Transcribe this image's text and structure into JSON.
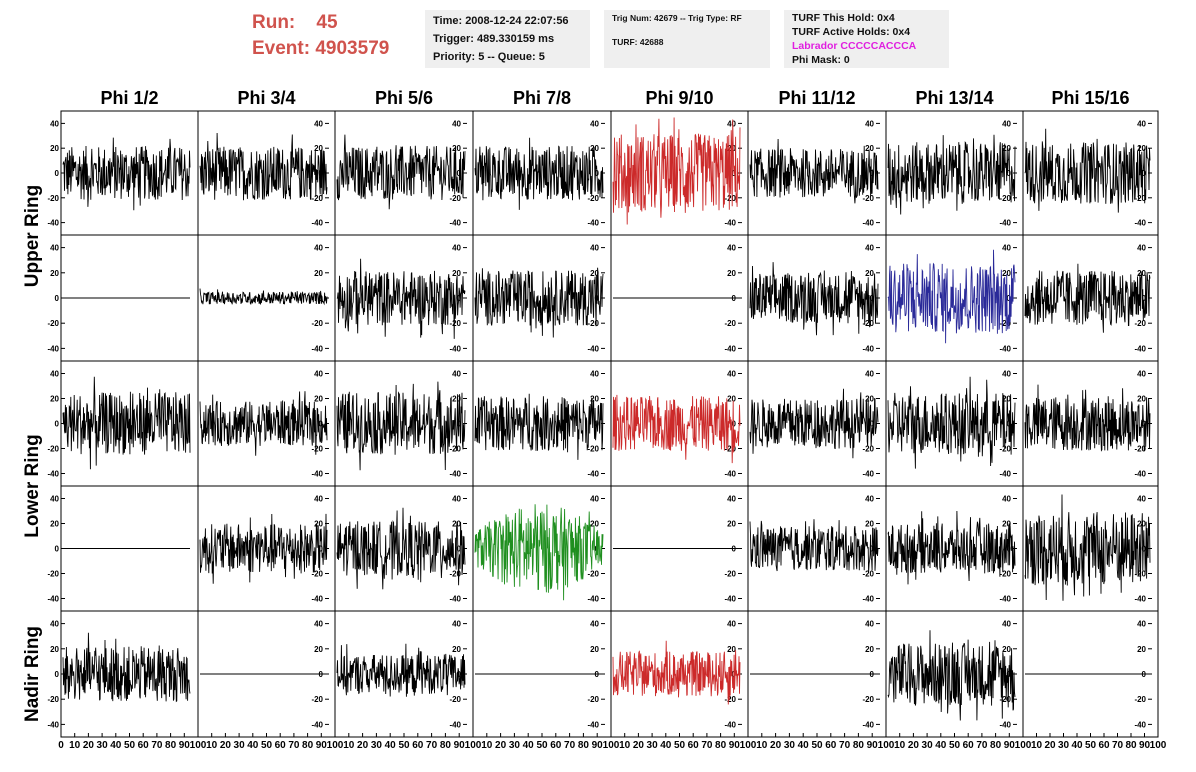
{
  "header": {
    "run_label": "Run:",
    "run_value": "45",
    "event_label": "Event:",
    "event_value": "4903579",
    "time": "Time: 2008-12-24 22:07:56",
    "trigger": "Trigger: 489.330159 ms",
    "priority": "Priority: 5 -- Queue: 5",
    "trig_num": "Trig Num: 42679 -- Trig Type: RF",
    "turf": "TURF: 42688",
    "turf_this_hold": "TURF This Hold: 0x4",
    "turf_active_holds": "TURF Active Holds: 0x4",
    "labrador": "Labrador CCCCCACCCA",
    "phi_mask": "Phi Mask: 0",
    "labrador_color": "#e020e0",
    "run_color": "#d0534d"
  },
  "chart_data": {
    "type": "line",
    "columns": [
      "Phi 1/2",
      "Phi 3/4",
      "Phi 5/6",
      "Phi 7/8",
      "Phi 9/10",
      "Phi 11/12",
      "Phi 13/14",
      "Phi 15/16"
    ],
    "row_groups": [
      {
        "label": "Upper Ring",
        "rows": [
          0,
          1
        ]
      },
      {
        "label": "Lower Ring",
        "rows": [
          2,
          3
        ]
      },
      {
        "label": "Nadir Ring",
        "rows": [
          4
        ]
      }
    ],
    "ylim": [
      -50,
      50
    ],
    "yticks": [
      "40",
      "20",
      "0",
      "-20",
      "-40"
    ],
    "xlim": [
      0,
      100
    ],
    "xticks": [
      "0",
      "10",
      "20",
      "30",
      "40",
      "50",
      "60",
      "70",
      "80",
      "90",
      "100"
    ],
    "colors": {
      "default": "#000000",
      "red": "#cc2a2a",
      "blue": "#2a2a99",
      "green": "#1f8f1f"
    },
    "rows": [
      {
        "panels": [
          {
            "color": "default",
            "amplitude": 22,
            "flat": false
          },
          {
            "color": "default",
            "amplitude": 22,
            "flat": false
          },
          {
            "color": "default",
            "amplitude": 22,
            "flat": false
          },
          {
            "color": "default",
            "amplitude": 22,
            "flat": false
          },
          {
            "color": "red",
            "amplitude": 32,
            "flat": false
          },
          {
            "color": "default",
            "amplitude": 20,
            "flat": false
          },
          {
            "color": "default",
            "amplitude": 25,
            "flat": false
          },
          {
            "color": "default",
            "amplitude": 25,
            "flat": false
          }
        ]
      },
      {
        "panels": [
          {
            "color": "default",
            "amplitude": 0,
            "flat": true
          },
          {
            "color": "default",
            "amplitude": 5,
            "flat": false
          },
          {
            "color": "default",
            "amplitude": 22,
            "flat": false
          },
          {
            "color": "default",
            "amplitude": 22,
            "flat": false
          },
          {
            "color": "default",
            "amplitude": 0,
            "flat": true
          },
          {
            "color": "default",
            "amplitude": 20,
            "flat": false
          },
          {
            "color": "blue",
            "amplitude": 28,
            "flat": false
          },
          {
            "color": "default",
            "amplitude": 22,
            "flat": false
          }
        ]
      },
      {
        "panels": [
          {
            "color": "default",
            "amplitude": 25,
            "flat": false
          },
          {
            "color": "default",
            "amplitude": 18,
            "flat": false
          },
          {
            "color": "default",
            "amplitude": 25,
            "flat": false
          },
          {
            "color": "default",
            "amplitude": 22,
            "flat": false
          },
          {
            "color": "red",
            "amplitude": 22,
            "flat": false
          },
          {
            "color": "default",
            "amplitude": 20,
            "flat": false
          },
          {
            "color": "default",
            "amplitude": 25,
            "flat": false
          },
          {
            "color": "default",
            "amplitude": 22,
            "flat": false
          }
        ]
      },
      {
        "panels": [
          {
            "color": "default",
            "amplitude": 0,
            "flat": true
          },
          {
            "color": "default",
            "amplitude": 20,
            "flat": false
          },
          {
            "color": "default",
            "amplitude": 22,
            "flat": false
          },
          {
            "color": "green",
            "amplitude": 28,
            "flat": false
          },
          {
            "color": "default",
            "amplitude": 0,
            "flat": true
          },
          {
            "color": "default",
            "amplitude": 18,
            "flat": false
          },
          {
            "color": "default",
            "amplitude": 20,
            "flat": false
          },
          {
            "color": "default",
            "amplitude": 30,
            "flat": false
          }
        ]
      },
      {
        "panels": [
          {
            "color": "default",
            "amplitude": 22,
            "flat": false
          },
          {
            "color": "default",
            "amplitude": 0,
            "flat": true
          },
          {
            "color": "default",
            "amplitude": 16,
            "flat": false
          },
          {
            "color": "default",
            "amplitude": 0,
            "flat": true
          },
          {
            "color": "red",
            "amplitude": 18,
            "flat": false
          },
          {
            "color": "default",
            "amplitude": 0,
            "flat": true
          },
          {
            "color": "default",
            "amplitude": 25,
            "flat": false
          },
          {
            "color": "default",
            "amplitude": 0,
            "flat": true
          }
        ]
      }
    ]
  }
}
